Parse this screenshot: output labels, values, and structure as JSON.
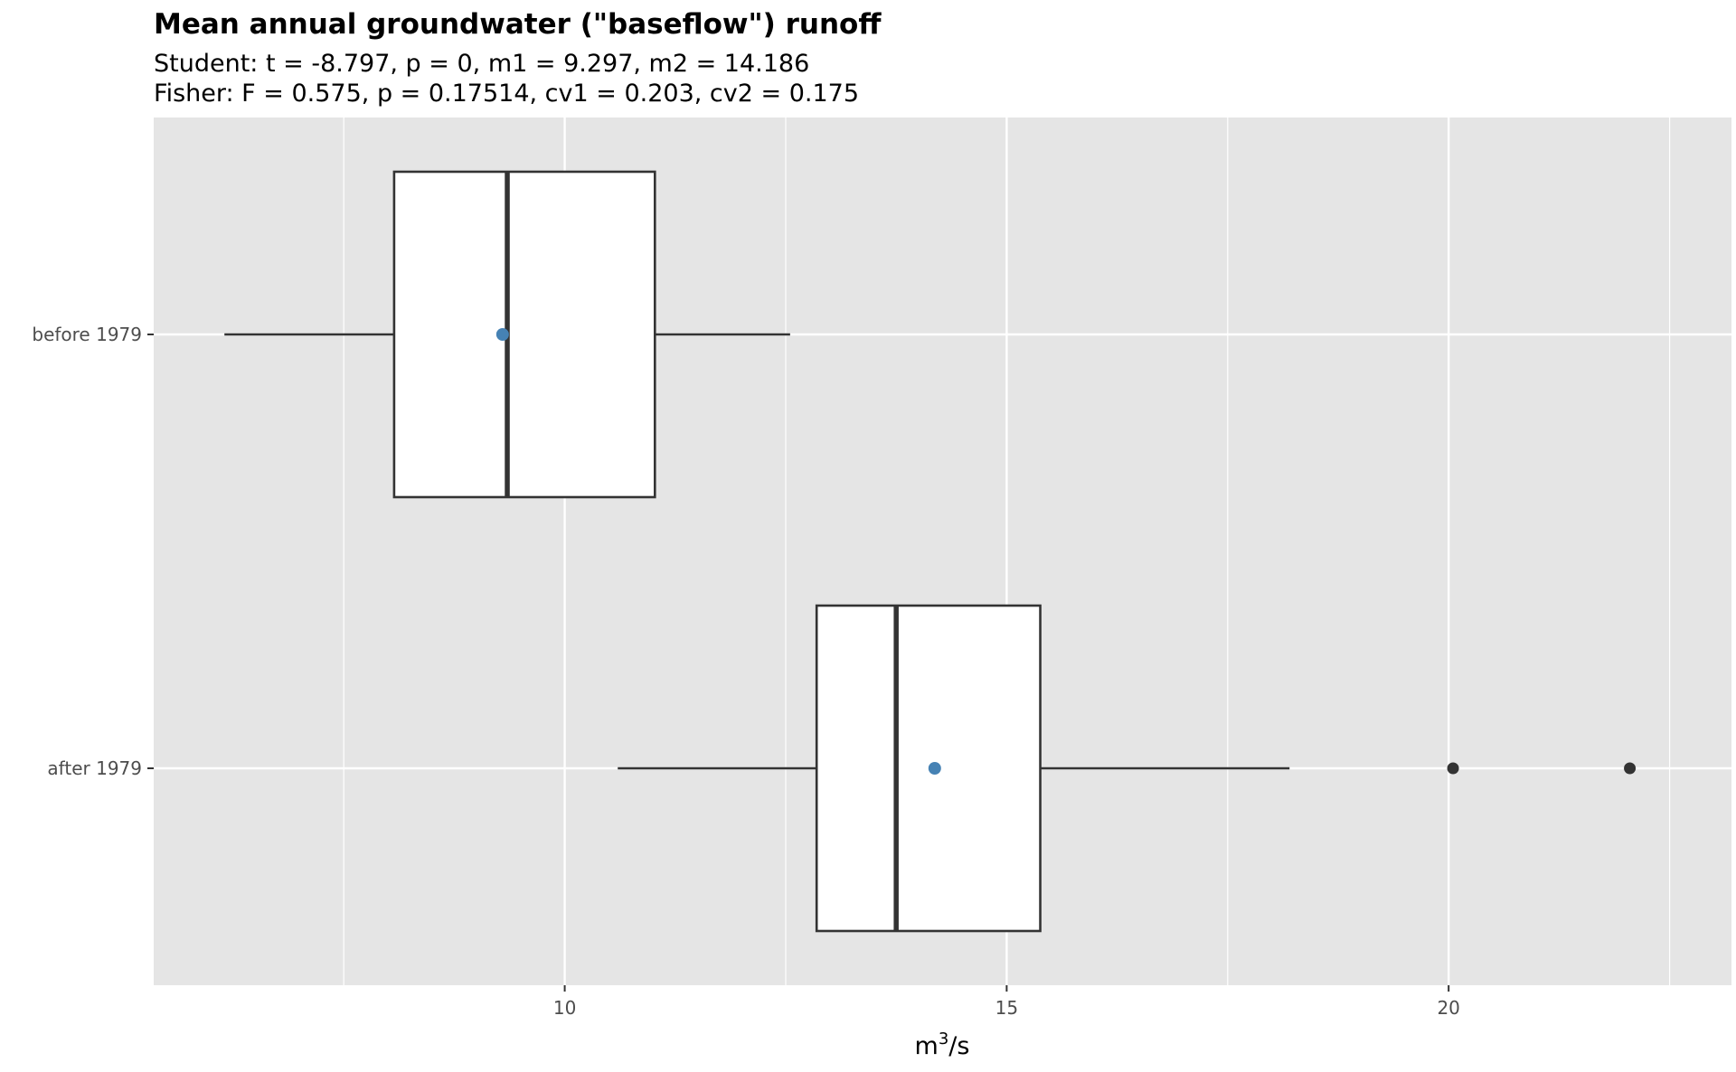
{
  "chart_data": {
    "type": "boxplot",
    "orientation": "horizontal",
    "title": "Mean annual groundwater (\"baseflow\") runoff",
    "subtitle_lines": [
      "Student: t = -8.797, p = 0, m1 = 9.297, m2 = 14.186",
      "Fisher: F = 0.575, p = 0.17514, cv1 = 0.203, cv2 = 0.175"
    ],
    "xlabel": {
      "base": "m",
      "sup": "3",
      "suffix": "/s"
    },
    "xlim": [
      5.35,
      23.2
    ],
    "x_ticks": [
      10,
      15,
      20
    ],
    "x_tick_labels": [
      "10",
      "15",
      "20"
    ],
    "x_minor_ticks": [
      7.5,
      12.5,
      17.5,
      22.5
    ],
    "categories": [
      "before 1979",
      "after 1979"
    ],
    "series": [
      {
        "category": "before 1979",
        "whisker_low": 6.15,
        "q1": 8.07,
        "median": 9.35,
        "q3": 11.02,
        "whisker_high": 12.55,
        "mean": 9.297,
        "outliers": []
      },
      {
        "category": "after 1979",
        "whisker_low": 10.6,
        "q1": 12.85,
        "median": 13.75,
        "q3": 15.38,
        "whisker_high": 18.2,
        "mean": 14.186,
        "outliers": [
          20.05,
          22.05
        ]
      }
    ],
    "colors": {
      "panel_background": "#e5e5e5",
      "grid": "#ffffff",
      "box_fill": "#ffffff",
      "box_line": "#333333",
      "mean_point": "#4682b4",
      "outlier_point": "#333333"
    },
    "grid": true,
    "legend": "none"
  }
}
